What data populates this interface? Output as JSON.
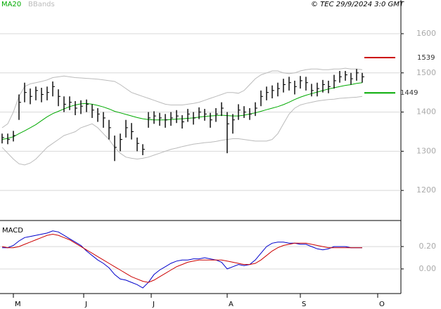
{
  "chart_data": [
    {
      "type": "ohlc",
      "copyright": "© TEC 29/9/2024 3:0 GMT",
      "xlim": [
        -0.375,
        70.875
      ],
      "ylim": [
        1125,
        1686
      ],
      "yticks": [
        1200,
        1300,
        1400,
        1500,
        1600
      ],
      "grid": true,
      "bar_color": "#000000",
      "high": [
        1345,
        1345,
        1352,
        1445,
        1475,
        1460,
        1465,
        1462,
        1465,
        1478,
        1458,
        1440,
        1440,
        1428,
        1430,
        1432,
        1420,
        1410,
        1400,
        1380,
        1340,
        1345,
        1380,
        1372,
        1335,
        1318,
        1400,
        1402,
        1398,
        1395,
        1400,
        1405,
        1392,
        1408,
        1400,
        1412,
        1408,
        1398,
        1410,
        1425,
        1400,
        1395,
        1420,
        1415,
        1410,
        1425,
        1455,
        1465,
        1468,
        1475,
        1485,
        1490,
        1480,
        1492,
        1490,
        1472,
        1475,
        1482,
        1480,
        1495,
        1505,
        1505,
        1500,
        1510,
        1500
      ],
      "low": [
        1320,
        1318,
        1325,
        1380,
        1425,
        1420,
        1430,
        1425,
        1430,
        1440,
        1415,
        1400,
        1405,
        1392,
        1395,
        1400,
        1385,
        1375,
        1360,
        1330,
        1275,
        1300,
        1335,
        1330,
        1300,
        1290,
        1360,
        1370,
        1365,
        1360,
        1365,
        1372,
        1358,
        1375,
        1368,
        1382,
        1378,
        1360,
        1375,
        1390,
        1295,
        1345,
        1380,
        1385,
        1380,
        1390,
        1415,
        1430,
        1435,
        1440,
        1450,
        1455,
        1445,
        1460,
        1455,
        1440,
        1440,
        1450,
        1448,
        1460,
        1475,
        1480,
        1470,
        1480,
        1475
      ],
      "close": [
        1335,
        1330,
        1340,
        1425,
        1450,
        1440,
        1455,
        1445,
        1450,
        1465,
        1440,
        1420,
        1425,
        1410,
        1415,
        1420,
        1405,
        1395,
        1385,
        1360,
        1310,
        1330,
        1360,
        1350,
        1320,
        1305,
        1385,
        1390,
        1385,
        1380,
        1385,
        1390,
        1375,
        1395,
        1385,
        1400,
        1395,
        1380,
        1395,
        1410,
        1370,
        1380,
        1405,
        1400,
        1395,
        1410,
        1440,
        1450,
        1455,
        1460,
        1470,
        1475,
        1465,
        1480,
        1475,
        1455,
        1460,
        1470,
        1465,
        1480,
        1490,
        1495,
        1485,
        1500,
        1490
      ],
      "series": [
        {
          "name": "MA20",
          "color": "#00aa00",
          "values": [
            1330,
            1333,
            1337,
            1345,
            1352,
            1360,
            1368,
            1378,
            1388,
            1396,
            1402,
            1408,
            1414,
            1418,
            1421,
            1422,
            1420,
            1417,
            1413,
            1408,
            1402,
            1398,
            1394,
            1390,
            1386,
            1383,
            1381,
            1380,
            1380,
            1380,
            1381,
            1382,
            1383,
            1384,
            1385,
            1387,
            1389,
            1390,
            1391,
            1392,
            1391,
            1390,
            1390,
            1392,
            1395,
            1398,
            1402,
            1406,
            1410,
            1414,
            1419,
            1425,
            1432,
            1438,
            1443,
            1447,
            1451,
            1455,
            1459,
            1462,
            1465,
            1468,
            1470,
            1473,
            1475
          ]
        },
        {
          "name": "BBands",
          "color": "#bbbbbb",
          "upper": [
            1360,
            1370,
            1400,
            1440,
            1465,
            1472,
            1475,
            1478,
            1482,
            1488,
            1490,
            1492,
            1490,
            1488,
            1487,
            1486,
            1485,
            1484,
            1482,
            1480,
            1478,
            1470,
            1460,
            1450,
            1445,
            1440,
            1435,
            1430,
            1425,
            1420,
            1418,
            1418,
            1418,
            1420,
            1422,
            1425,
            1430,
            1435,
            1440,
            1445,
            1450,
            1450,
            1448,
            1455,
            1470,
            1485,
            1495,
            1500,
            1505,
            1505,
            1500,
            1498,
            1500,
            1505,
            1508,
            1510,
            1510,
            1508,
            1508,
            1510,
            1510,
            1512,
            1510,
            1510,
            1508
          ],
          "lower": [
            1310,
            1295,
            1280,
            1268,
            1265,
            1270,
            1280,
            1295,
            1310,
            1320,
            1330,
            1340,
            1345,
            1350,
            1360,
            1365,
            1370,
            1360,
            1345,
            1330,
            1310,
            1295,
            1285,
            1282,
            1280,
            1282,
            1285,
            1290,
            1295,
            1300,
            1305,
            1308,
            1312,
            1315,
            1318,
            1320,
            1322,
            1323,
            1325,
            1328,
            1330,
            1332,
            1332,
            1330,
            1328,
            1326,
            1326,
            1326,
            1330,
            1345,
            1370,
            1395,
            1410,
            1418,
            1422,
            1425,
            1428,
            1430,
            1432,
            1433,
            1435,
            1436,
            1437,
            1438,
            1440
          ]
        }
      ],
      "levels": [
        {
          "value": 1539,
          "color": "#cc0000"
        },
        {
          "value": 1449,
          "color": "#00aa00"
        }
      ]
    },
    {
      "type": "line",
      "title": "MACD",
      "xlim": [
        -0.375,
        70.875
      ],
      "ylim": [
        -0.22,
        0.42
      ],
      "yticks": [
        {
          "value": 0.2,
          "label": "0.20"
        },
        {
          "value": 0,
          "label": "0.00"
        }
      ],
      "grid": true,
      "xticks": [
        {
          "value": 2,
          "label": "M"
        },
        {
          "value": 14.5,
          "label": "J"
        },
        {
          "value": 26.5,
          "label": "J"
        },
        {
          "value": 40,
          "label": "A"
        },
        {
          "value": 53,
          "label": "S"
        },
        {
          "value": 66.75,
          "label": "O"
        }
      ],
      "series": [
        {
          "color": "#0000cc",
          "values": [
            0.19,
            0.19,
            0.21,
            0.25,
            0.28,
            0.29,
            0.3,
            0.31,
            0.32,
            0.34,
            0.33,
            0.3,
            0.27,
            0.24,
            0.21,
            0.16,
            0.12,
            0.08,
            0.05,
            0.01,
            -0.05,
            -0.09,
            -0.1,
            -0.12,
            -0.14,
            -0.17,
            -0.12,
            -0.05,
            -0.01,
            0.02,
            0.05,
            0.07,
            0.08,
            0.08,
            0.09,
            0.09,
            0.1,
            0.09,
            0.08,
            0.06,
            0.0,
            0.02,
            0.04,
            0.03,
            0.04,
            0.08,
            0.14,
            0.2,
            0.23,
            0.24,
            0.24,
            0.23,
            0.23,
            0.22,
            0.22,
            0.2,
            0.18,
            0.17,
            0.18,
            0.2,
            0.2,
            0.2,
            0.19,
            0.19,
            0.19
          ]
        },
        {
          "color": "#cc0000",
          "values": [
            0.2,
            0.19,
            0.19,
            0.2,
            0.22,
            0.24,
            0.26,
            0.28,
            0.3,
            0.31,
            0.3,
            0.28,
            0.26,
            0.23,
            0.2,
            0.17,
            0.14,
            0.11,
            0.08,
            0.05,
            0.02,
            -0.01,
            -0.04,
            -0.07,
            -0.09,
            -0.11,
            -0.12,
            -0.1,
            -0.07,
            -0.04,
            -0.01,
            0.02,
            0.04,
            0.06,
            0.07,
            0.08,
            0.08,
            0.08,
            0.08,
            0.08,
            0.07,
            0.06,
            0.05,
            0.04,
            0.04,
            0.05,
            0.08,
            0.12,
            0.16,
            0.19,
            0.21,
            0.22,
            0.23,
            0.23,
            0.23,
            0.22,
            0.21,
            0.2,
            0.19,
            0.19,
            0.19,
            0.19,
            0.19,
            0.19,
            0.19
          ]
        }
      ]
    }
  ]
}
